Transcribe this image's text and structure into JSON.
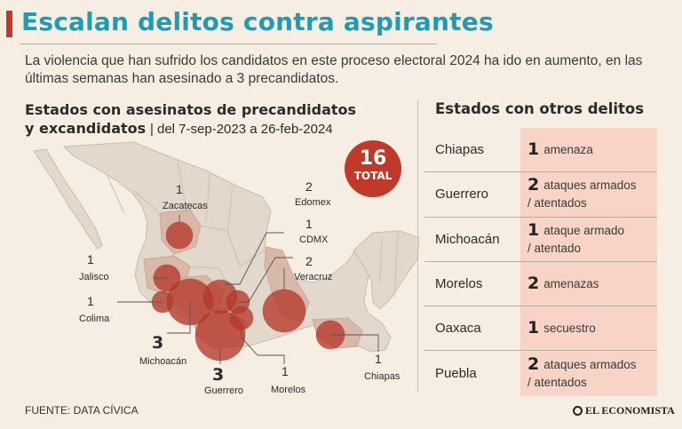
{
  "header": {
    "title": "Escalan delitos contra aspirantes",
    "subtitle": "La violencia que han sufrido los candidatos en este proceso electoral 2024 ha ido en aumento, en las últimas semanas han asesinado a 3 precandidatos."
  },
  "map_section": {
    "heading_line1": "Estados con asesinatos de precandidatos",
    "heading_line2": "y excandidatos",
    "date_range": "| del 7-sep-2023 a 26-feb-2024",
    "total_number": "16",
    "total_label": "TOTAL",
    "states": [
      {
        "name": "Zacatecas",
        "count": "1"
      },
      {
        "name": "Edomex",
        "count": "2"
      },
      {
        "name": "CDMX",
        "count": "1"
      },
      {
        "name": "Veracruz",
        "count": "2"
      },
      {
        "name": "Jalisco",
        "count": "1"
      },
      {
        "name": "Colima",
        "count": "1"
      },
      {
        "name": "Michoacán",
        "count": "3"
      },
      {
        "name": "Guerrero",
        "count": "3"
      },
      {
        "name": "Morelos",
        "count": "1"
      },
      {
        "name": "Chiapas",
        "count": "1"
      }
    ]
  },
  "other_crimes": {
    "heading": "Estados con otros delitos",
    "rows": [
      {
        "state": "Chiapas",
        "count": "1",
        "line1": "amenaza",
        "line2": ""
      },
      {
        "state": "Guerrero",
        "count": "2",
        "line1": "ataques armados",
        "line2": "/ atentados"
      },
      {
        "state": "Michoacán",
        "count": "1",
        "line1": "ataque armado",
        "line2": "/ atentado"
      },
      {
        "state": "Morelos",
        "count": "2",
        "line1": "amenazas",
        "line2": ""
      },
      {
        "state": "Oaxaca",
        "count": "1",
        "line1": "secuestro",
        "line2": ""
      },
      {
        "state": "Puebla",
        "count": "2",
        "line1": "ataques armados",
        "line2": "/ atentados"
      }
    ]
  },
  "footer": {
    "source": "FUENTE: DATA CÍVICA",
    "brand": "EL ECONOMISTA"
  },
  "colors": {
    "title": "#1f9bb3",
    "accent": "#c0392b",
    "bubble": "#b5382a",
    "highlight_state": "#d9b8a8",
    "land": "#e3d8cc",
    "table_cell": "#f8d4c6"
  }
}
